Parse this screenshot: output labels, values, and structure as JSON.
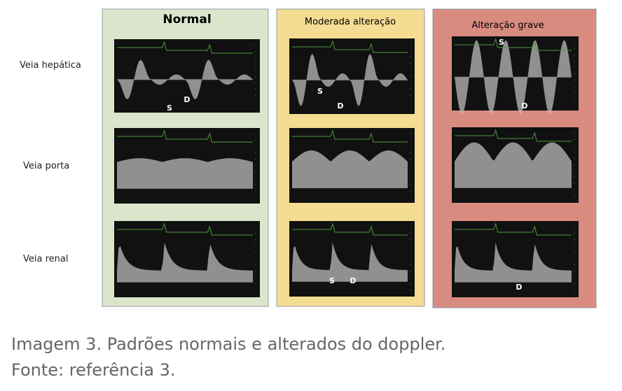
{
  "rows": [
    "Veia hepática",
    "Veia porta",
    "Veia renal"
  ],
  "panels": [
    {
      "title": "Normal",
      "markers": {
        "hepatic": [
          "S",
          "D"
        ],
        "renal": []
      }
    },
    {
      "title": "Moderada alteração",
      "markers": {
        "hepatic": [
          "S",
          "D"
        ],
        "renal": [
          "S",
          "D"
        ]
      }
    },
    {
      "title": "Alteração grave",
      "markers": {
        "hepatic": [
          "S",
          "D"
        ],
        "renal": [
          "D"
        ]
      }
    }
  ],
  "caption": {
    "title": "Imagem 3. Padrões normais e alterados do doppler.",
    "source": "Fonte: referência 3."
  }
}
